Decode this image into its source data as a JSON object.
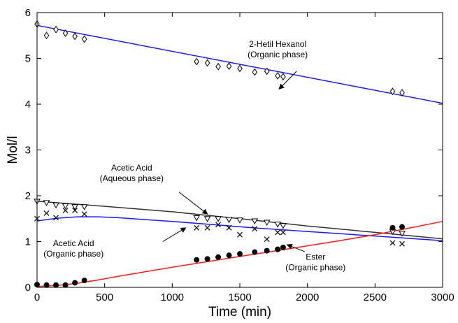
{
  "chart_data": {
    "type": "scatter",
    "title": "",
    "xlabel": "Time (min)",
    "ylabel": "Mol/l",
    "xlim": [
      0,
      3000
    ],
    "ylim": [
      0,
      6
    ],
    "xticks": [
      0,
      500,
      1000,
      1500,
      2000,
      2500,
      3000
    ],
    "yticks": [
      0,
      1,
      2,
      3,
      4,
      5,
      6
    ],
    "grid": false,
    "legend": "none",
    "series": [
      {
        "marker": "open-diamond",
        "color": "#000000",
        "x": [
          0,
          70,
          140,
          210,
          280,
          350,
          1180,
          1260,
          1340,
          1420,
          1500,
          1610,
          1700,
          1780,
          1820,
          2630,
          2700
        ],
        "y": [
          5.75,
          5.5,
          5.63,
          5.55,
          5.48,
          5.42,
          4.93,
          4.9,
          4.82,
          4.83,
          4.78,
          4.7,
          4.72,
          4.62,
          4.6,
          4.28,
          4.25
        ]
      },
      {
        "marker": "open-triangle-down",
        "color": "#000000",
        "x": [
          0,
          70,
          140,
          210,
          280,
          350,
          1180,
          1260,
          1340,
          1420,
          1500,
          1610,
          1700,
          1780,
          1820,
          2630,
          2700
        ],
        "y": [
          1.88,
          1.85,
          1.8,
          1.78,
          1.76,
          1.76,
          1.52,
          1.5,
          1.5,
          1.48,
          1.47,
          1.45,
          1.42,
          1.38,
          1.35,
          1.22,
          1.18
        ]
      },
      {
        "marker": "x",
        "color": "#000000",
        "x": [
          0,
          70,
          140,
          210,
          280,
          350,
          1180,
          1260,
          1340,
          1420,
          1500,
          1610,
          1700,
          1780,
          1820,
          2630,
          2700
        ],
        "y": [
          1.5,
          1.62,
          1.52,
          1.68,
          1.68,
          1.6,
          1.3,
          1.3,
          1.37,
          1.3,
          1.15,
          1.28,
          1.05,
          1.2,
          1.2,
          0.97,
          0.95
        ]
      },
      {
        "marker": "filled-circle",
        "color": "#000000",
        "x": [
          0,
          70,
          140,
          210,
          280,
          350,
          1180,
          1260,
          1340,
          1420,
          1500,
          1610,
          1700,
          1780,
          1820,
          2630,
          2700
        ],
        "y": [
          0.06,
          0.05,
          0.05,
          0.05,
          0.1,
          0.15,
          0.6,
          0.62,
          0.66,
          0.7,
          0.73,
          0.77,
          0.8,
          0.83,
          0.87,
          1.3,
          1.32
        ]
      }
    ],
    "fit_lines": [
      {
        "color": "#1a1aff",
        "x": [
          0,
          3000
        ],
        "y": [
          5.72,
          4.02
        ]
      },
      {
        "color": "#333333",
        "x": [
          0,
          500,
          1000,
          1500,
          2000,
          2500,
          3000
        ],
        "y": [
          1.88,
          1.77,
          1.65,
          1.5,
          1.34,
          1.2,
          1.06
        ]
      },
      {
        "color": "#1a1aff",
        "x": [
          0,
          150,
          300,
          450,
          600,
          800,
          1000,
          1300,
          1600,
          2000,
          2500,
          3000
        ],
        "y": [
          1.45,
          1.51,
          1.54,
          1.54,
          1.52,
          1.48,
          1.44,
          1.37,
          1.3,
          1.22,
          1.12,
          1.02
        ]
      },
      {
        "color": "#ff1a1a",
        "x": [
          0,
          150,
          300,
          450,
          600,
          800,
          1000,
          1300,
          1600,
          1900,
          2200,
          2500,
          2800,
          3000
        ],
        "y": [
          0.02,
          0.04,
          0.09,
          0.16,
          0.24,
          0.34,
          0.44,
          0.58,
          0.72,
          0.86,
          1.0,
          1.15,
          1.32,
          1.44
        ]
      }
    ],
    "annotations": [
      {
        "lines": [
          "2-Hetil Hexanol",
          "(Organic phase)"
        ],
        "x": 1780,
        "y": 5.25,
        "arrow_from": [
          1920,
          4.72
        ],
        "arrow_to": [
          1790,
          4.33
        ]
      },
      {
        "lines": [
          "Acetic Acid",
          "(Aqueous phase)"
        ],
        "x": 700,
        "y": 2.55,
        "arrow_from": [
          1050,
          2.08
        ],
        "arrow_to": [
          1260,
          1.6
        ]
      },
      {
        "lines": [
          "Acetic Acid",
          "(Organic phase)"
        ],
        "x": 270,
        "y": 0.9,
        "arrow_from": [
          930,
          1.0
        ],
        "arrow_to": [
          1100,
          1.3
        ]
      },
      {
        "lines": [
          "Ester",
          "(Organic phase)"
        ],
        "x": 2060,
        "y": 0.6,
        "arrow_from": [
          1980,
          0.78
        ],
        "arrow_to": [
          1850,
          0.93
        ]
      }
    ]
  }
}
